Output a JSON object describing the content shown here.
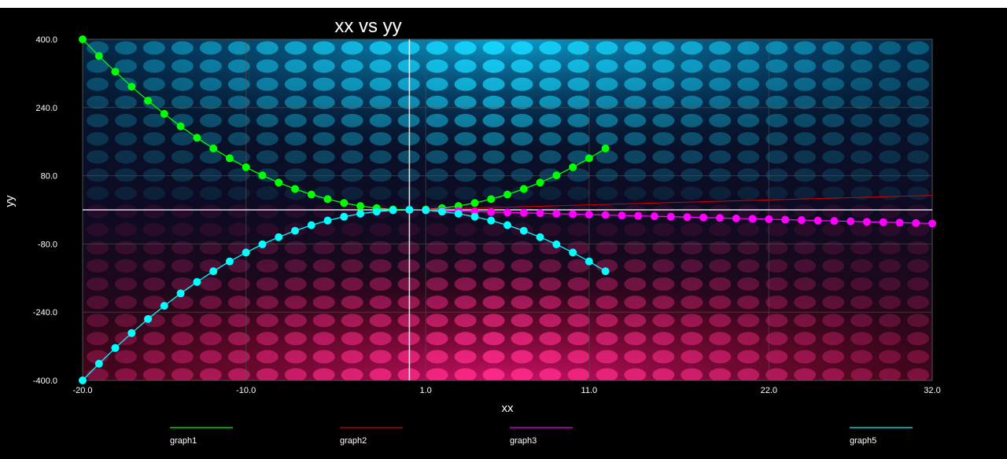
{
  "chart_data": {
    "type": "line",
    "title": "xx vs yy",
    "xlabel": "xx",
    "ylabel": "yy",
    "xlim": [
      -20,
      32
    ],
    "ylim": [
      -400,
      400
    ],
    "x_tick_labels": [
      "-20.0",
      "-10.0",
      "1.0",
      "11.0",
      "22.0",
      "32.0"
    ],
    "y_tick_labels": [
      "400.0",
      "240.0",
      "80.0",
      "-80.0",
      "-240.0",
      "-400.0"
    ],
    "grid": true,
    "crosshair": {
      "x": 0,
      "y": 0
    },
    "legend_position": "bottom",
    "series": [
      {
        "name": "graph1",
        "color": "#00ff00",
        "markers": true,
        "x": [
          -20,
          -19,
          -18,
          -17,
          -16,
          -15,
          -14,
          -13,
          -12,
          -11,
          -10,
          -9,
          -8,
          -7,
          -6,
          -5,
          -4,
          -3,
          -2,
          -1,
          0,
          1,
          2,
          3,
          4,
          5,
          6,
          7,
          8,
          9,
          10,
          11,
          12
        ],
        "y": [
          400,
          361,
          324,
          289,
          256,
          225,
          196,
          169,
          144,
          121,
          100,
          81,
          64,
          49,
          36,
          25,
          16,
          9,
          4,
          1,
          0,
          1,
          4,
          9,
          16,
          25,
          36,
          49,
          64,
          81,
          100,
          121,
          144
        ]
      },
      {
        "name": "graph2",
        "color": "#d40000",
        "markers": false,
        "x": [
          0,
          32
        ],
        "y": [
          0,
          34
        ]
      },
      {
        "name": "graph3",
        "color": "#ff00ff",
        "markers": true,
        "x": [
          0,
          1,
          2,
          3,
          4,
          5,
          6,
          7,
          8,
          9,
          10,
          11,
          12,
          13,
          14,
          15,
          16,
          17,
          18,
          19,
          20,
          21,
          22,
          23,
          24,
          25,
          26,
          27,
          28,
          29,
          30,
          31,
          32
        ],
        "y": [
          0,
          -1,
          -2,
          -3,
          -4,
          -5,
          -6,
          -7,
          -8,
          -9,
          -10,
          -11,
          -12,
          -13,
          -14,
          -15,
          -16,
          -17,
          -18,
          -19,
          -20,
          -21,
          -22,
          -23,
          -24,
          -25,
          -26,
          -27,
          -28,
          -29,
          -30,
          -31,
          -32
        ]
      },
      {
        "name": "graph5",
        "color": "#00ffff",
        "markers": true,
        "x": [
          -20,
          -19,
          -18,
          -17,
          -16,
          -15,
          -14,
          -13,
          -12,
          -11,
          -10,
          -9,
          -8,
          -7,
          -6,
          -5,
          -4,
          -3,
          -2,
          -1,
          0,
          1,
          2,
          3,
          4,
          5,
          6,
          7,
          8,
          9,
          10,
          11,
          12
        ],
        "y": [
          -400,
          -361,
          -324,
          -289,
          -256,
          -225,
          -196,
          -169,
          -144,
          -121,
          -100,
          -81,
          -64,
          -49,
          -36,
          -25,
          -16,
          -9,
          -4,
          -1,
          0,
          -1,
          -4,
          -9,
          -16,
          -25,
          -36,
          -49,
          -64,
          -81,
          -100,
          -121,
          -144
        ]
      }
    ]
  },
  "colors": {
    "background": "#000000",
    "top_glow": "#00e5ff",
    "bottom_glow": "#ff1a8c",
    "grid": "#555555",
    "crosshair": "#ffffff"
  }
}
